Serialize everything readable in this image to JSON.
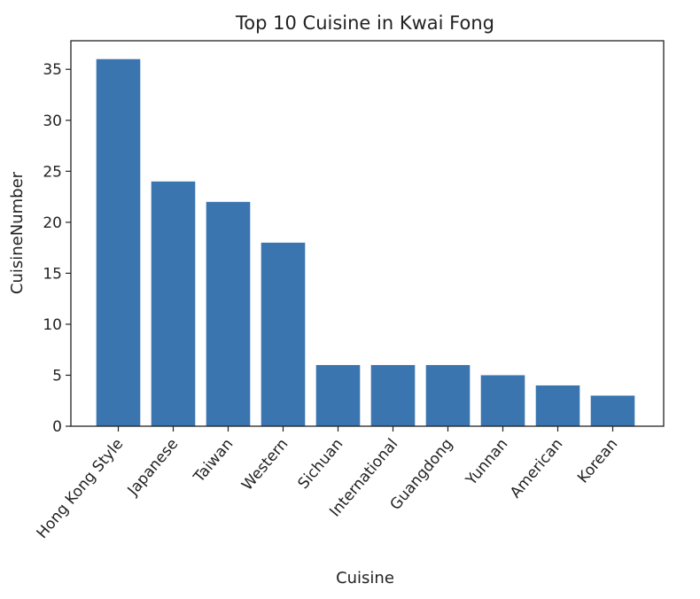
{
  "chart_data": {
    "type": "bar",
    "title": "Top 10 Cuisine in Kwai Fong",
    "xlabel": "Cuisine",
    "ylabel": "CuisineNumber",
    "categories": [
      "Hong Kong Style",
      "Japanese",
      "Taiwan",
      "Western",
      "Sichuan",
      "International",
      "Guangdong",
      "Yunnan",
      "American",
      "Korean"
    ],
    "values": [
      36,
      24,
      22,
      18,
      6,
      6,
      6,
      5,
      4,
      3
    ],
    "ylim": [
      0,
      37.8
    ],
    "yticks": [
      0,
      5,
      10,
      15,
      20,
      25,
      30,
      35
    ],
    "bar_color": "#3a75b0",
    "grid": false,
    "legend": "none"
  }
}
